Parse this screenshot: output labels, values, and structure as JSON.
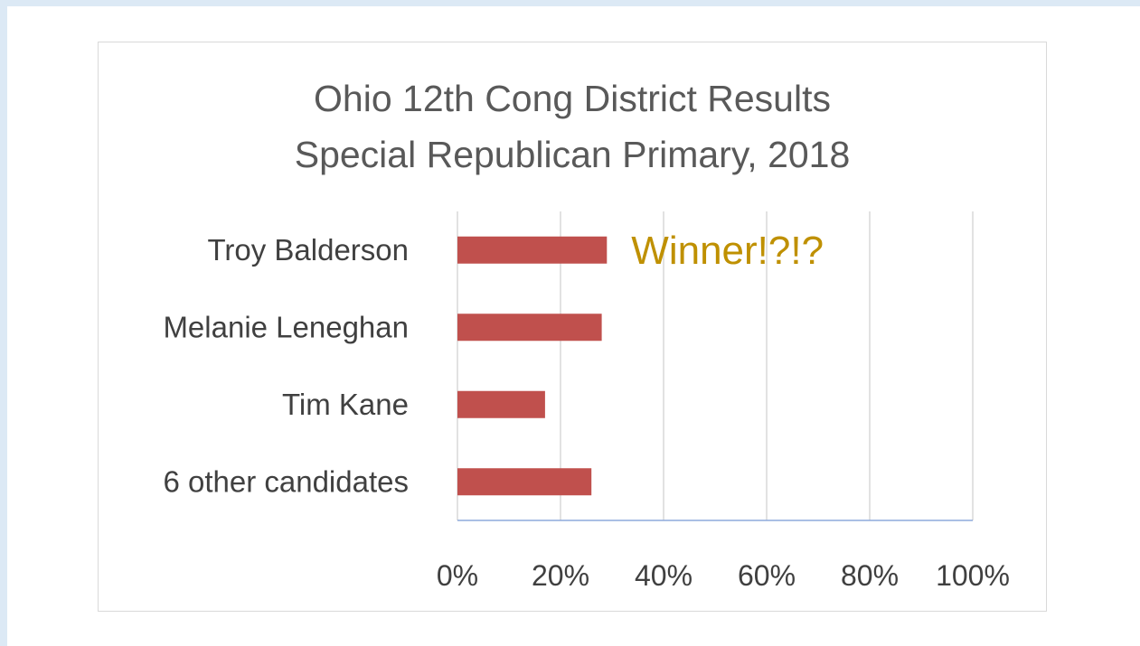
{
  "chart_data": {
    "type": "bar",
    "orientation": "horizontal",
    "title": [
      "Ohio 12th Cong District Results",
      "Special Republican Primary, 2018"
    ],
    "categories": [
      "Troy Balderson",
      "Melanie Leneghan",
      "Tim Kane",
      "6 other candidates"
    ],
    "values": [
      29,
      28,
      17,
      26
    ],
    "xlim": [
      0,
      100
    ],
    "ticks": [
      0,
      20,
      40,
      60,
      80,
      100
    ],
    "tick_labels": [
      "0%",
      "20%",
      "40%",
      "60%",
      "80%",
      "100%"
    ],
    "grid": true,
    "bar_color": "#c0504d",
    "annotation": {
      "text": "Winner!?!?",
      "color": "#bf9000",
      "category": "Troy Balderson"
    }
  }
}
